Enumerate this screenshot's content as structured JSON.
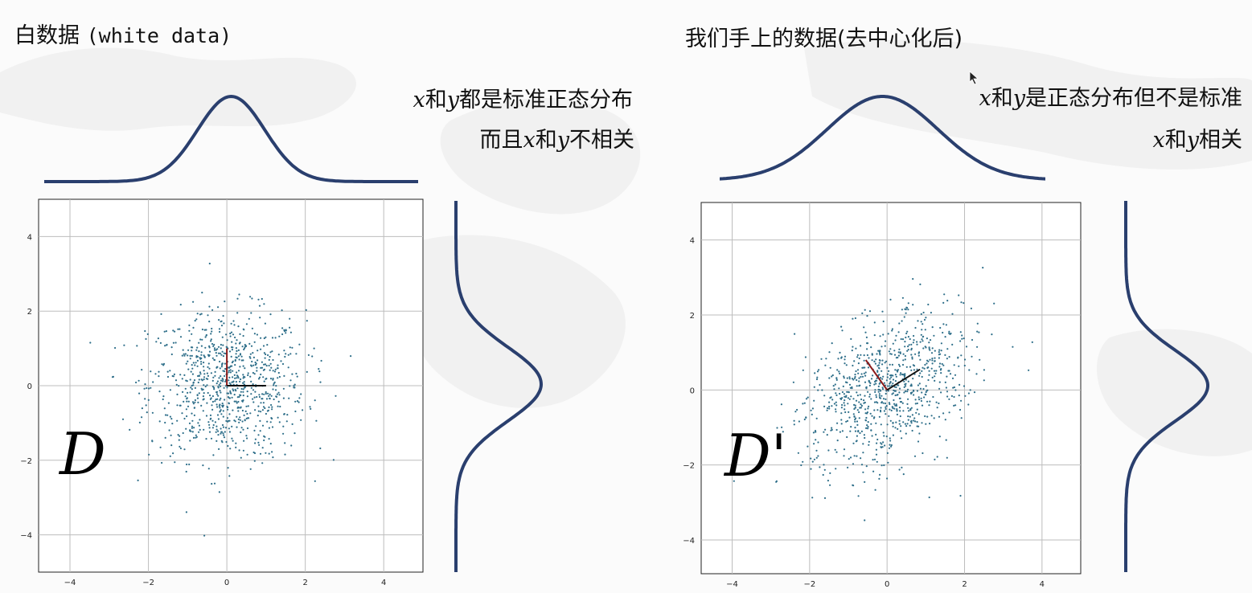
{
  "left": {
    "title_cn": "白数据",
    "title_en": "(white data)",
    "desc_line1": [
      "x",
      "和",
      "y",
      "都是标准正态分布"
    ],
    "desc_line2": [
      "而且",
      "x",
      "和",
      "y",
      "不相关"
    ],
    "plot_label": "D",
    "x_ticks": [
      "−4",
      "−2",
      "0",
      "2",
      "4"
    ],
    "y_ticks": [
      "4",
      "2",
      "0",
      "−2",
      "−4"
    ],
    "marker_color": "#2f6f8a"
  },
  "right": {
    "title": "我们手上的数据(去中心化后)",
    "desc_line1": [
      "x",
      "和",
      "y",
      "是正态分布但不是标准"
    ],
    "desc_line2": [
      "x",
      "和",
      "y",
      "相关"
    ],
    "plot_label": "D'",
    "x_ticks": [
      "−4",
      "−2",
      "0",
      "2",
      "4"
    ],
    "y_ticks": [
      "4",
      "2",
      "0",
      "−2",
      "−4"
    ],
    "marker_color": "#2f6f8a"
  },
  "colors": {
    "curve": "#2a3f6e",
    "axis_red": "#8b1a1a",
    "axis_black": "#111111",
    "grid": "#bdbdbd"
  }
}
